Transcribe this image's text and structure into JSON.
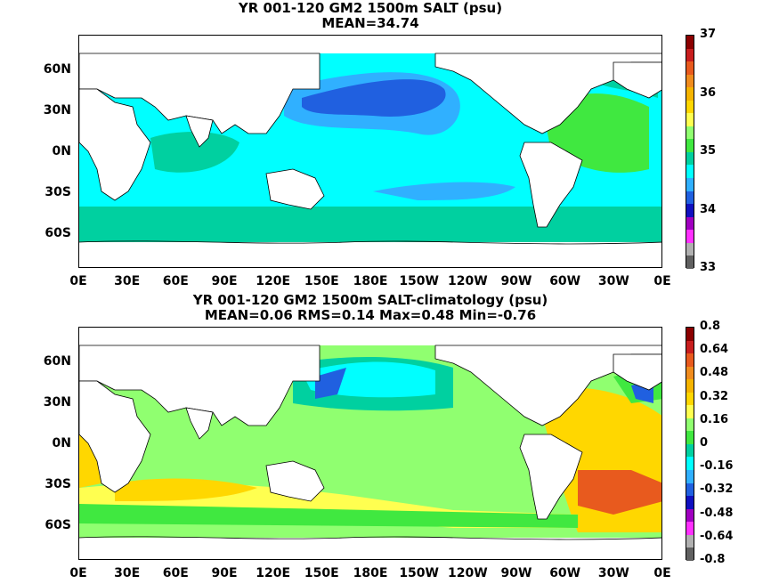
{
  "panels": [
    {
      "title_line1": "YR 001-120 GM2 1500m SALT (psu)",
      "title_line2": "MEAN=34.74",
      "colorbar_labels": [
        "37",
        "36",
        "35",
        "34",
        "33"
      ],
      "colorbar_colors": [
        "#8b0000",
        "#c81e1e",
        "#e85a1e",
        "#f08c1e",
        "#f5b400",
        "#ffd700",
        "#ffff50",
        "#90ff70",
        "#40e840",
        "#00d0a0",
        "#00ffff",
        "#30b0ff",
        "#2060e0",
        "#1010c0",
        "#a000c0",
        "#ff30ff",
        "#b0b0b0",
        "#606060"
      ],
      "background": "#00ffff"
    },
    {
      "title_line1": "YR 001-120 GM2 1500m SALT-climatology (psu)",
      "title_line2": "MEAN=0.06   RMS=0.14   Max=0.48   Min=-0.76",
      "colorbar_labels": [
        "0.8",
        "0.64",
        "0.48",
        "0.32",
        "0.16",
        "0",
        "-0.16",
        "-0.32",
        "-0.48",
        "-0.64",
        "-0.8"
      ],
      "colorbar_colors": [
        "#8b0000",
        "#c81e1e",
        "#e85a1e",
        "#f08c1e",
        "#f5b400",
        "#ffd700",
        "#ffff50",
        "#90ff70",
        "#40e840",
        "#00d0a0",
        "#00ffff",
        "#30b0ff",
        "#2060e0",
        "#1010c0",
        "#a000c0",
        "#ff30ff",
        "#b0b0b0",
        "#606060"
      ],
      "background": "#90ff70"
    }
  ],
  "lat_labels": [
    "60N",
    "30N",
    "0N",
    "30S",
    "60S"
  ],
  "lon_labels": [
    "0E",
    "30E",
    "60E",
    "90E",
    "120E",
    "150E",
    "180E",
    "150W",
    "120W",
    "90W",
    "60W",
    "30W",
    "0E"
  ]
}
